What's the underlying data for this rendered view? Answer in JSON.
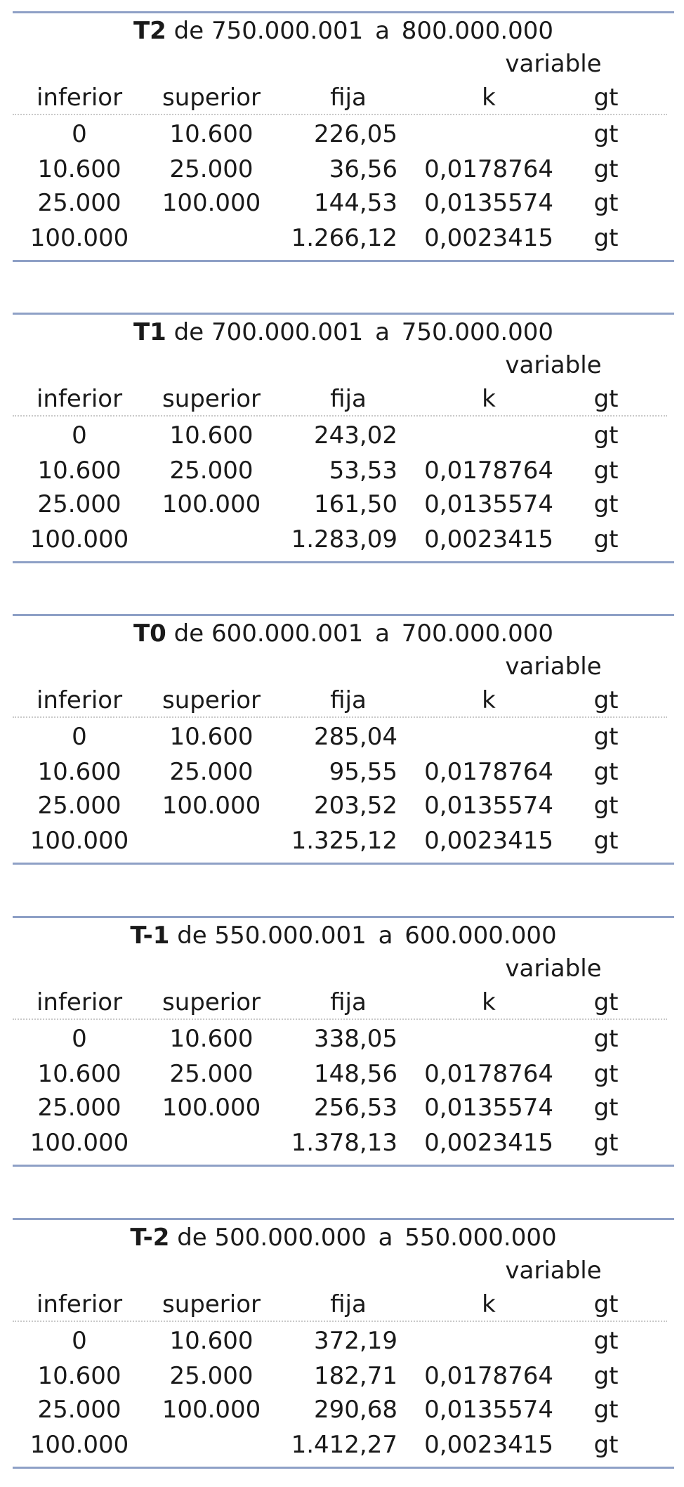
{
  "tables": [
    {
      "code": "T2",
      "de_label": "de",
      "from": "750.000.001",
      "a_label": "a",
      "to": "800.000.000",
      "variable_label": "variable",
      "headers": {
        "inferior": "inferior",
        "superior": "superior",
        "fija": "fija",
        "k": "k",
        "gt": "gt"
      },
      "rows": [
        {
          "inferior": "0",
          "superior": "10.600",
          "fija": "226,05",
          "k": "",
          "gt": "gt"
        },
        {
          "inferior": "10.600",
          "superior": "25.000",
          "fija": "36,56",
          "k": "0,0178764",
          "gt": "gt"
        },
        {
          "inferior": "25.000",
          "superior": "100.000",
          "fija": "144,53",
          "k": "0,0135574",
          "gt": "gt"
        },
        {
          "inferior": "100.000",
          "superior": "",
          "fija": "1.266,12",
          "k": "0,0023415",
          "gt": "gt"
        }
      ]
    },
    {
      "code": "T1",
      "de_label": "de",
      "from": "700.000.001",
      "a_label": "a",
      "to": "750.000.000",
      "variable_label": "variable",
      "headers": {
        "inferior": "inferior",
        "superior": "superior",
        "fija": "fija",
        "k": "k",
        "gt": "gt"
      },
      "rows": [
        {
          "inferior": "0",
          "superior": "10.600",
          "fija": "243,02",
          "k": "",
          "gt": "gt"
        },
        {
          "inferior": "10.600",
          "superior": "25.000",
          "fija": "53,53",
          "k": "0,0178764",
          "gt": "gt"
        },
        {
          "inferior": "25.000",
          "superior": "100.000",
          "fija": "161,50",
          "k": "0,0135574",
          "gt": "gt"
        },
        {
          "inferior": "100.000",
          "superior": "",
          "fija": "1.283,09",
          "k": "0,0023415",
          "gt": "gt"
        }
      ]
    },
    {
      "code": "T0",
      "de_label": "de",
      "from": "600.000.001",
      "a_label": "a",
      "to": "700.000.000",
      "variable_label": "variable",
      "headers": {
        "inferior": "inferior",
        "superior": "superior",
        "fija": "fija",
        "k": "k",
        "gt": "gt"
      },
      "rows": [
        {
          "inferior": "0",
          "superior": "10.600",
          "fija": "285,04",
          "k": "",
          "gt": "gt"
        },
        {
          "inferior": "10.600",
          "superior": "25.000",
          "fija": "95,55",
          "k": "0,0178764",
          "gt": "gt"
        },
        {
          "inferior": "25.000",
          "superior": "100.000",
          "fija": "203,52",
          "k": "0,0135574",
          "gt": "gt"
        },
        {
          "inferior": "100.000",
          "superior": "",
          "fija": "1.325,12",
          "k": "0,0023415",
          "gt": "gt"
        }
      ]
    },
    {
      "code": "T-1",
      "de_label": "de",
      "from": "550.000.001",
      "a_label": "a",
      "to": "600.000.000",
      "variable_label": "variable",
      "headers": {
        "inferior": "inferior",
        "superior": "superior",
        "fija": "fija",
        "k": "k",
        "gt": "gt"
      },
      "rows": [
        {
          "inferior": "0",
          "superior": "10.600",
          "fija": "338,05",
          "k": "",
          "gt": "gt"
        },
        {
          "inferior": "10.600",
          "superior": "25.000",
          "fija": "148,56",
          "k": "0,0178764",
          "gt": "gt"
        },
        {
          "inferior": "25.000",
          "superior": "100.000",
          "fija": "256,53",
          "k": "0,0135574",
          "gt": "gt"
        },
        {
          "inferior": "100.000",
          "superior": "",
          "fija": "1.378,13",
          "k": "0,0023415",
          "gt": "gt"
        }
      ]
    },
    {
      "code": "T-2",
      "de_label": "de",
      "from": "500.000.000",
      "a_label": "a",
      "to": "550.000.000",
      "variable_label": "variable",
      "headers": {
        "inferior": "inferior",
        "superior": "superior",
        "fija": "fija",
        "k": "k",
        "gt": "gt"
      },
      "rows": [
        {
          "inferior": "0",
          "superior": "10.600",
          "fija": "372,19",
          "k": "",
          "gt": "gt"
        },
        {
          "inferior": "10.600",
          "superior": "25.000",
          "fija": "182,71",
          "k": "0,0178764",
          "gt": "gt"
        },
        {
          "inferior": "25.000",
          "superior": "100.000",
          "fija": "290,68",
          "k": "0,0135574",
          "gt": "gt"
        },
        {
          "inferior": "100.000",
          "superior": "",
          "fija": "1.412,27",
          "k": "0,0023415",
          "gt": "gt"
        }
      ]
    }
  ]
}
